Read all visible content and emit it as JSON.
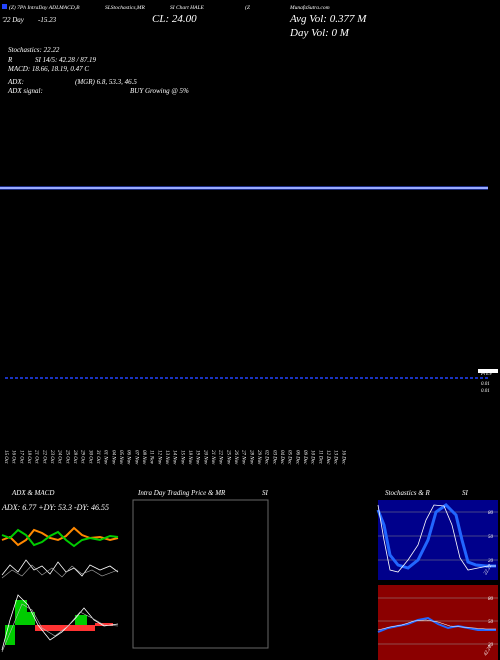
{
  "header": {
    "items": [
      "(Z) 7Ph IntraDay ADLMACD,B",
      "SLStochastics,MR",
      "SI Chart HALE",
      "(Z",
      "MunafaSutra.com"
    ],
    "change_label": "'22 Day",
    "change_value": "-15.23",
    "close": "CL: 24.00",
    "avg_vol": "Avg Vol: 0.377 M",
    "day_vol": "Day Vol: 0   M"
  },
  "indicators": {
    "stochastics": "Stochastics: 22.22",
    "r": "R",
    "rsi": "SI 14/5: 42.28 / 87.19",
    "macd": "MACD: 18.66, 18.19, 0.47 C",
    "adx": "ADX:",
    "adx_values": "(MGR) 6.8, 53.3, 46.5",
    "adx_signal": "ADX  signal:",
    "signal": "BUY Growing @ 5%"
  },
  "right_labels": [
    "Price",
    "0.01",
    "0.01"
  ],
  "dates": [
    "15 Oct",
    "16 Oct",
    "17 Oct",
    "18 Oct",
    "21 Oct",
    "22 Oct",
    "23 Oct",
    "24 Oct",
    "25 Oct",
    "28 Oct",
    "29 Oct",
    "30 Oct",
    "31 Oct",
    "01 Nov",
    "04 Nov",
    "05 Nov",
    "06 Nov",
    "07 Nov",
    "08 Nov",
    "11 Nov",
    "12 Nov",
    "13 Nov",
    "14 Nov",
    "15 Nov",
    "18 Nov",
    "19 Nov",
    "20 Nov",
    "21 Nov",
    "22 Nov",
    "25 Nov",
    "26 Nov",
    "27 Nov",
    "28 Nov",
    "29 Nov",
    "02 Dec",
    "03 Dec",
    "04 Dec",
    "05 Dec",
    "06 Dec",
    "09 Dec",
    "10 Dec",
    "11 Dec",
    "12 Dec",
    "13 Dec",
    "16 Dec"
  ],
  "panels": {
    "adx_title": "ADX  & MACD",
    "adx_readout": "ADX: 6.77  +DY: 53.3  -DY: 46.55",
    "intraday_title": "Intra  Day Trading Price  & MR",
    "intraday_suffix": "SI",
    "stoch_title": "Stochastics & R",
    "stoch_suffix": "SI",
    "stoch_levels": [
      "80",
      "50",
      "20"
    ],
    "stoch_value": "22.22",
    "rsi_levels": [
      "80",
      "50",
      "20"
    ],
    "rsi_value": "42.28"
  }
}
